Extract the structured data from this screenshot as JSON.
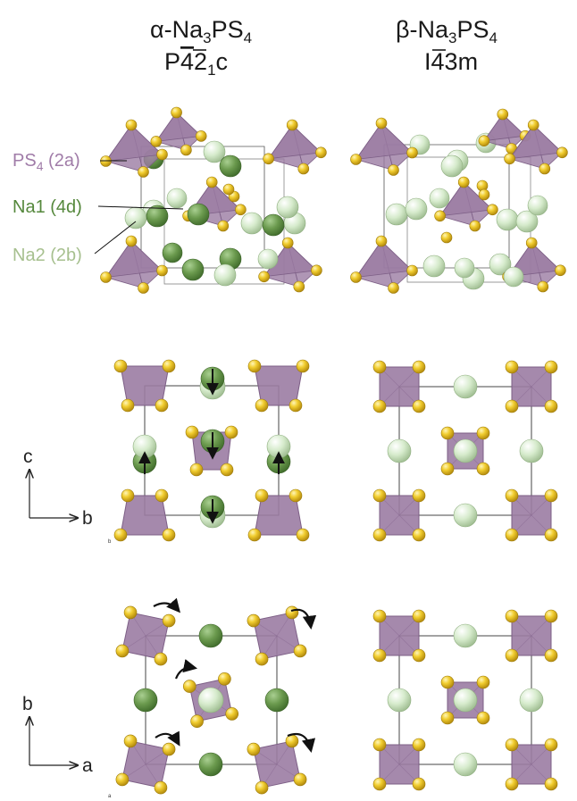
{
  "titles": {
    "alpha": {
      "greek": "α",
      "main": "-Na",
      "sub1": "3",
      "mid": "PS",
      "sub2": "4"
    },
    "beta": {
      "greek": "β",
      "main": "-Na",
      "sub1": "3",
      "mid": "PS",
      "sub2": "4"
    },
    "alpha_spacegroup": {
      "p1": "P",
      "bar": "4",
      "p2": "2",
      "sub": "1",
      "p3": "c"
    },
    "beta_spacegroup": {
      "p1": "I",
      "bar": "4",
      "p2": "3m"
    }
  },
  "labels": {
    "ps4": {
      "ps": "PS",
      "sub": "4",
      "site": " (2a)"
    },
    "na1": "Na1 (4d)",
    "na2": "Na2 (2b)"
  },
  "axes": {
    "row2": {
      "vertical": "c",
      "horizontal": "b",
      "corner": "b"
    },
    "row3": {
      "vertical": "b",
      "horizontal": "a",
      "corner": "a"
    }
  },
  "colors": {
    "tetra": "#9b7ca3",
    "tetra_edge": "#7d5f86",
    "sulfur": "#e8c22b",
    "na1": "#6b9a4e",
    "na2": "#cfe6c4",
    "ps4_label": "#a07ca8",
    "na1_label": "#55883c",
    "na2_label": "#a7c08f"
  }
}
